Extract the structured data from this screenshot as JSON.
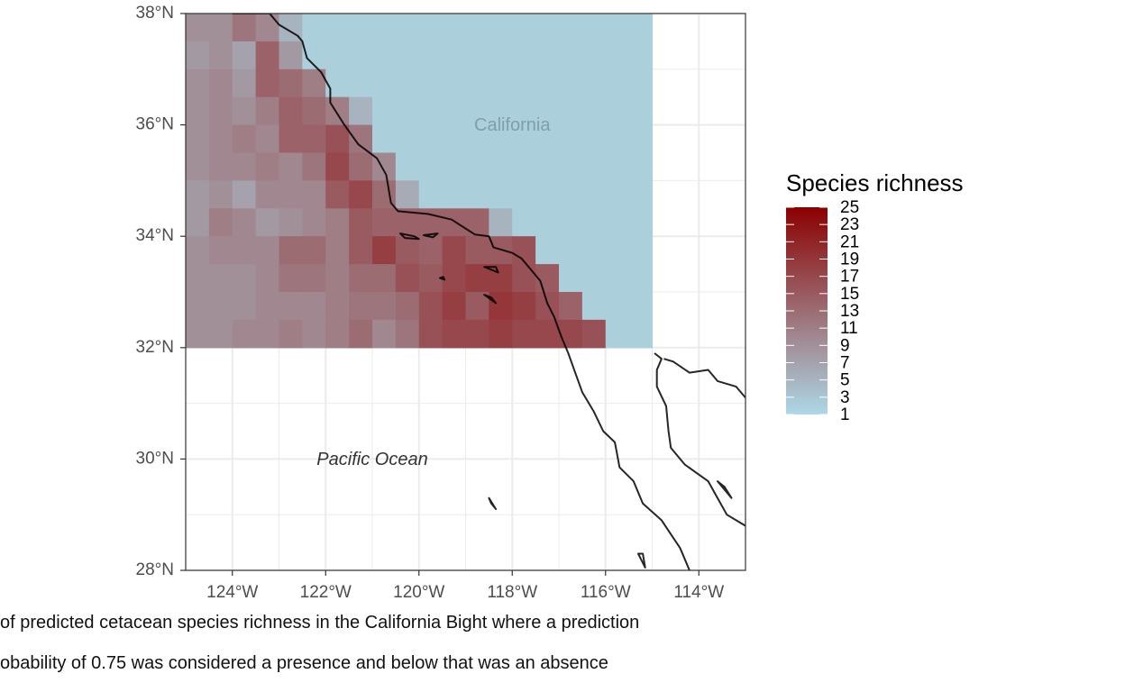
{
  "chart_data": {
    "type": "heatmap",
    "title": "",
    "xlabel": "",
    "ylabel": "",
    "xlim": [
      -125,
      -113
    ],
    "ylim": [
      28,
      38
    ],
    "grid": true,
    "cell_size_deg": 0.5,
    "x_ticks": [
      {
        "value": -124,
        "label": "124°W"
      },
      {
        "value": -122,
        "label": "122°W"
      },
      {
        "value": -120,
        "label": "120°W"
      },
      {
        "value": -118,
        "label": "118°W"
      },
      {
        "value": -116,
        "label": "116°W"
      },
      {
        "value": -114,
        "label": "114°W"
      }
    ],
    "y_ticks": [
      {
        "value": 38,
        "label": "38°N"
      },
      {
        "value": 36,
        "label": "36°N"
      },
      {
        "value": 34,
        "label": "34°N"
      },
      {
        "value": 32,
        "label": "32°N"
      },
      {
        "value": 30,
        "label": "30°N"
      },
      {
        "value": 28,
        "label": "28°N"
      }
    ],
    "row_lat_top": [
      38,
      37.5,
      37,
      36.5,
      36,
      35.5,
      35,
      34.5,
      34,
      33.5,
      33,
      32.5
    ],
    "col_lon_left": -125,
    "richness_grid": [
      [
        9,
        9,
        12,
        10,
        5,
        2,
        2,
        2,
        2,
        2,
        2,
        2,
        2,
        2,
        2,
        2,
        2,
        2,
        2,
        2
      ],
      [
        8,
        9,
        7,
        14,
        8,
        2,
        2,
        2,
        2,
        2,
        2,
        2,
        2,
        2,
        2,
        2,
        2,
        2,
        2,
        2
      ],
      [
        9,
        10,
        8,
        14,
        13,
        11,
        2,
        2,
        2,
        2,
        2,
        2,
        2,
        2,
        2,
        2,
        2,
        2,
        2,
        2
      ],
      [
        9,
        10,
        9,
        11,
        14,
        13,
        11,
        5,
        2,
        2,
        2,
        2,
        2,
        2,
        2,
        2,
        2,
        2,
        2,
        2
      ],
      [
        9,
        10,
        11,
        10,
        14,
        14,
        16,
        12,
        2,
        2,
        2,
        2,
        2,
        2,
        2,
        2,
        2,
        2,
        2,
        2
      ],
      [
        9,
        10,
        10,
        11,
        10,
        12,
        17,
        13,
        10,
        2,
        2,
        2,
        2,
        2,
        2,
        2,
        2,
        2,
        2,
        2
      ],
      [
        8,
        9,
        7,
        10,
        10,
        10,
        15,
        17,
        13,
        6,
        2,
        2,
        2,
        2,
        2,
        2,
        2,
        2,
        2,
        2
      ],
      [
        8,
        11,
        10,
        8,
        9,
        10,
        11,
        15,
        14,
        14,
        14,
        14,
        14,
        5,
        2,
        2,
        2,
        2,
        2,
        2
      ],
      [
        9,
        10,
        10,
        10,
        13,
        13,
        11,
        15,
        18,
        15,
        14,
        17,
        15,
        15,
        16,
        2,
        2,
        2,
        2,
        2
      ],
      [
        9,
        9,
        9,
        10,
        12,
        12,
        11,
        13,
        13,
        16,
        15,
        17,
        18,
        18,
        16,
        15,
        2,
        2,
        2,
        2
      ],
      [
        9,
        9,
        9,
        10,
        10,
        10,
        11,
        12,
        12,
        13,
        16,
        18,
        15,
        19,
        18,
        16,
        14,
        2,
        2,
        2
      ],
      [
        9,
        9,
        10,
        10,
        11,
        10,
        11,
        13,
        10,
        12,
        16,
        17,
        17,
        18,
        17,
        17,
        17,
        16,
        2,
        2
      ]
    ],
    "legend": {
      "title": "Species richness",
      "position": "right",
      "min": 1,
      "max": 25,
      "low_color": "#ADD8E6",
      "high_color": "#8B0000",
      "labels": [
        "25",
        "23",
        "21",
        "19",
        "17",
        "15",
        "13",
        "11",
        "9",
        "7",
        "5",
        "3",
        "1"
      ]
    },
    "annotations": [
      {
        "text": "California",
        "lon": -118.0,
        "lat": 35.98,
        "color": "#7f9eae",
        "style": "normal"
      },
      {
        "text": "Pacific Ocean",
        "lon": -121.0,
        "lat": 29.98,
        "color": "#333333",
        "style": "italic"
      }
    ],
    "coastline": [
      [
        -124.0,
        38.0
      ],
      [
        -123.2,
        38.0
      ],
      [
        -123.0,
        37.8
      ],
      [
        -122.6,
        37.6
      ],
      [
        -122.5,
        37.5
      ],
      [
        -122.4,
        37.2
      ],
      [
        -122.1,
        36.95
      ],
      [
        -121.9,
        36.65
      ],
      [
        -121.9,
        36.4
      ],
      [
        -121.6,
        36.0
      ],
      [
        -121.3,
        35.65
      ],
      [
        -120.9,
        35.4
      ],
      [
        -120.7,
        35.1
      ],
      [
        -120.6,
        34.6
      ],
      [
        -120.45,
        34.45
      ],
      [
        -119.8,
        34.4
      ],
      [
        -119.3,
        34.3
      ],
      [
        -118.8,
        34.03
      ],
      [
        -118.5,
        34.0
      ],
      [
        -118.4,
        33.8
      ],
      [
        -118.0,
        33.7
      ],
      [
        -117.8,
        33.6
      ],
      [
        -117.4,
        33.2
      ],
      [
        -117.25,
        32.8
      ],
      [
        -117.1,
        32.55
      ],
      [
        -116.95,
        32.2
      ],
      [
        -116.8,
        31.9
      ],
      [
        -116.65,
        31.55
      ],
      [
        -116.5,
        31.2
      ],
      [
        -116.25,
        30.85
      ],
      [
        -116.05,
        30.5
      ],
      [
        -115.8,
        30.3
      ],
      [
        -115.7,
        29.85
      ],
      [
        -115.4,
        29.6
      ],
      [
        -115.2,
        29.2
      ],
      [
        -114.8,
        28.9
      ],
      [
        -114.4,
        28.4
      ],
      [
        -114.2,
        28.0
      ]
    ],
    "gulf_coast_west": [
      [
        -114.95,
        31.9
      ],
      [
        -114.8,
        31.8
      ],
      [
        -114.9,
        31.6
      ],
      [
        -114.9,
        31.3
      ],
      [
        -114.7,
        30.95
      ],
      [
        -114.65,
        30.5
      ],
      [
        -114.6,
        30.2
      ],
      [
        -114.3,
        29.9
      ],
      [
        -113.8,
        29.6
      ],
      [
        -113.6,
        29.3
      ],
      [
        -113.4,
        29.0
      ],
      [
        -113.0,
        28.8
      ]
    ],
    "gulf_coast_east": [
      [
        -114.75,
        31.8
      ],
      [
        -114.55,
        31.75
      ],
      [
        -114.2,
        31.55
      ],
      [
        -113.8,
        31.6
      ],
      [
        -113.6,
        31.4
      ],
      [
        -113.2,
        31.3
      ],
      [
        -113.0,
        31.1
      ]
    ],
    "islands": [
      [
        [
          -120.4,
          34.05
        ],
        [
          -120.1,
          34.0
        ],
        [
          -120.0,
          33.95
        ],
        [
          -120.3,
          33.97
        ],
        [
          -120.4,
          34.05
        ]
      ],
      [
        [
          -119.9,
          34.02
        ],
        [
          -119.6,
          34.05
        ],
        [
          -119.7,
          33.98
        ],
        [
          -119.9,
          34.02
        ]
      ],
      [
        [
          -119.55,
          33.25
        ],
        [
          -119.45,
          33.22
        ],
        [
          -119.48,
          33.27
        ],
        [
          -119.55,
          33.25
        ]
      ],
      [
        [
          -118.6,
          33.45
        ],
        [
          -118.3,
          33.35
        ],
        [
          -118.35,
          33.45
        ],
        [
          -118.6,
          33.45
        ]
      ],
      [
        [
          -118.6,
          32.95
        ],
        [
          -118.35,
          32.8
        ],
        [
          -118.45,
          32.9
        ],
        [
          -118.6,
          32.95
        ]
      ],
      [
        [
          -118.5,
          29.3
        ],
        [
          -118.35,
          29.1
        ],
        [
          -118.45,
          29.2
        ],
        [
          -118.5,
          29.3
        ]
      ],
      [
        [
          -115.3,
          28.3
        ],
        [
          -115.15,
          28.05
        ],
        [
          -115.2,
          28.3
        ],
        [
          -115.3,
          28.3
        ]
      ],
      [
        [
          -113.6,
          29.6
        ],
        [
          -113.3,
          29.3
        ],
        [
          -113.45,
          29.5
        ],
        [
          -113.6,
          29.6
        ]
      ]
    ]
  },
  "caption": {
    "line1": "of predicted cetacean species richness in the California Bight where a prediction",
    "line2": "obability of 0.75 was considered a presence and below that was an absence"
  }
}
